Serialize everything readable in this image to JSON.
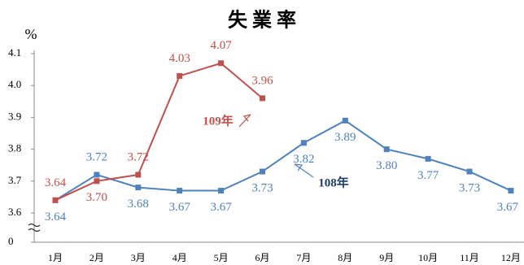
{
  "chart_data": {
    "type": "line",
    "title": "失業率",
    "y_label": "%",
    "categories": [
      "1月",
      "2月",
      "3月",
      "4月",
      "5月",
      "6月",
      "7月",
      "8月",
      "9月",
      "10月",
      "11月",
      "12月"
    ],
    "series": [
      {
        "name": "108年",
        "color": "#4f81bd",
        "label_color": "#1f3f66",
        "values": [
          3.64,
          3.72,
          3.68,
          3.67,
          3.67,
          3.73,
          3.82,
          3.89,
          3.8,
          3.77,
          3.73,
          3.67
        ],
        "value_labels": [
          "3.64",
          "3.72",
          "3.68",
          "3.67",
          "3.67",
          "3.73",
          "3.82",
          "3.89",
          "3.80",
          "3.77",
          "3.73",
          "3.67"
        ]
      },
      {
        "name": "109年",
        "color": "#c0504d",
        "label_color": "#c0504d",
        "values": [
          3.64,
          3.7,
          3.72,
          4.03,
          4.07,
          3.96,
          null,
          null,
          null,
          null,
          null,
          null
        ],
        "value_labels": [
          "3.64",
          "3.70",
          "3.72",
          "4.03",
          "4.07",
          "3.96",
          null,
          null,
          null,
          null,
          null,
          null
        ]
      }
    ],
    "ylim": [
      3.6,
      4.1
    ],
    "axis_break": true,
    "yticks": [
      0,
      3.6,
      3.7,
      3.8,
      3.9,
      {
        "value": 4,
        "label": "4.0"
      },
      4.1
    ]
  }
}
